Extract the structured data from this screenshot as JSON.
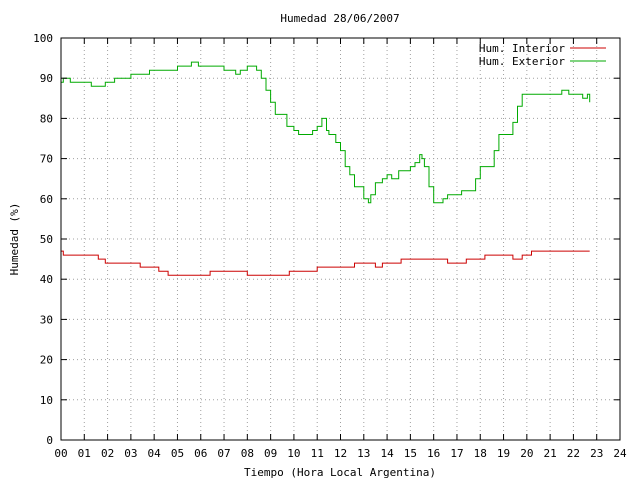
{
  "chart_data": {
    "type": "line",
    "title": "Humedad 28/06/2007",
    "xlabel": "Tiempo (Hora Local Argentina)",
    "ylabel": "Humedad (%)",
    "xlim": [
      0,
      24
    ],
    "ylim": [
      0,
      100
    ],
    "grid": true,
    "legend_position": "top-right",
    "x_ticks": [
      0,
      1,
      2,
      3,
      4,
      5,
      6,
      7,
      8,
      9,
      10,
      11,
      12,
      13,
      14,
      15,
      16,
      17,
      18,
      19,
      20,
      21,
      22,
      23,
      24
    ],
    "x_tick_labels": [
      "00",
      "01",
      "02",
      "03",
      "04",
      "05",
      "06",
      "07",
      "08",
      "09",
      "10",
      "11",
      "12",
      "13",
      "14",
      "15",
      "16",
      "17",
      "18",
      "19",
      "20",
      "21",
      "22",
      "23",
      "24"
    ],
    "y_ticks": [
      0,
      10,
      20,
      30,
      40,
      50,
      60,
      70,
      80,
      90,
      100
    ],
    "y_tick_labels": [
      "0",
      "10",
      "20",
      "30",
      "40",
      "50",
      "60",
      "70",
      "80",
      "90",
      "100"
    ],
    "series": [
      {
        "name": "Hum. Interior",
        "color": "#cc0000",
        "x": [
          0,
          0.1,
          0.2,
          0.8,
          1.3,
          1.6,
          1.9,
          2.4,
          2.8,
          3.1,
          3.4,
          3.8,
          4.2,
          4.6,
          5.0,
          5.3,
          5.6,
          6.0,
          6.4,
          6.8,
          7.2,
          7.6,
          8.0,
          8.4,
          8.7,
          9.0,
          9.4,
          9.8,
          10.2,
          10.6,
          11.0,
          11.4,
          11.8,
          12.2,
          12.6,
          13.0,
          13.2,
          13.5,
          13.8,
          14.2,
          14.6,
          15.0,
          15.4,
          15.8,
          16.2,
          16.6,
          17.0,
          17.4,
          17.8,
          18.2,
          18.6,
          19.0,
          19.4,
          19.8,
          20.2,
          20.6,
          21.0,
          21.4,
          21.8,
          22.2,
          22.7
        ],
        "values": [
          47,
          46,
          46,
          46,
          46,
          45,
          44,
          44,
          44,
          44,
          43,
          43,
          42,
          41,
          41,
          41,
          41,
          41,
          42,
          42,
          42,
          42,
          41,
          41,
          41,
          41,
          41,
          42,
          42,
          42,
          43,
          43,
          43,
          43,
          44,
          44,
          44,
          43,
          44,
          44,
          45,
          45,
          45,
          45,
          45,
          44,
          44,
          45,
          45,
          46,
          46,
          46,
          45,
          46,
          47,
          47,
          47,
          47,
          47,
          47,
          47
        ]
      },
      {
        "name": "Hum. Exterior",
        "color": "#00aa00",
        "x": [
          0,
          0.1,
          0.4,
          0.7,
          0.9,
          1.0,
          1.3,
          1.5,
          1.9,
          2.3,
          2.6,
          3.0,
          3.4,
          3.8,
          4.2,
          4.6,
          5.0,
          5.3,
          5.6,
          5.9,
          6.3,
          6.7,
          7.0,
          7.2,
          7.5,
          7.7,
          8.0,
          8.4,
          8.6,
          8.8,
          9.0,
          9.2,
          9.4,
          9.7,
          10.0,
          10.2,
          10.5,
          10.8,
          11.0,
          11.2,
          11.4,
          11.5,
          11.8,
          12.0,
          12.2,
          12.4,
          12.6,
          12.8,
          13.0,
          13.2,
          13.3,
          13.5,
          13.8,
          14.0,
          14.2,
          14.5,
          14.8,
          15.0,
          15.2,
          15.4,
          15.5,
          15.6,
          15.8,
          16.0,
          16.2,
          16.4,
          16.6,
          16.8,
          17.0,
          17.2,
          17.5,
          17.8,
          18.0,
          18.3,
          18.6,
          18.8,
          19.0,
          19.2,
          19.4,
          19.6,
          19.8,
          20.0,
          20.3,
          20.6,
          20.9,
          21.2,
          21.5,
          21.8,
          22.0,
          22.2,
          22.4,
          22.6,
          22.7
        ],
        "values": [
          89,
          90,
          89,
          89,
          89,
          89,
          88,
          88,
          89,
          90,
          90,
          91,
          91,
          92,
          92,
          92,
          93,
          93,
          94,
          93,
          93,
          93,
          92,
          92,
          91,
          92,
          93,
          92,
          90,
          87,
          84,
          81,
          81,
          78,
          77,
          76,
          76,
          77,
          78,
          80,
          77,
          76,
          74,
          72,
          68,
          66,
          63,
          63,
          60,
          59,
          61,
          64,
          65,
          66,
          65,
          67,
          67,
          68,
          69,
          71,
          70,
          68,
          63,
          59,
          59,
          60,
          61,
          61,
          61,
          62,
          62,
          65,
          68,
          68,
          72,
          76,
          76,
          76,
          79,
          83,
          86,
          86,
          86,
          86,
          86,
          86,
          87,
          86,
          86,
          86,
          85,
          86,
          84
        ]
      }
    ]
  }
}
